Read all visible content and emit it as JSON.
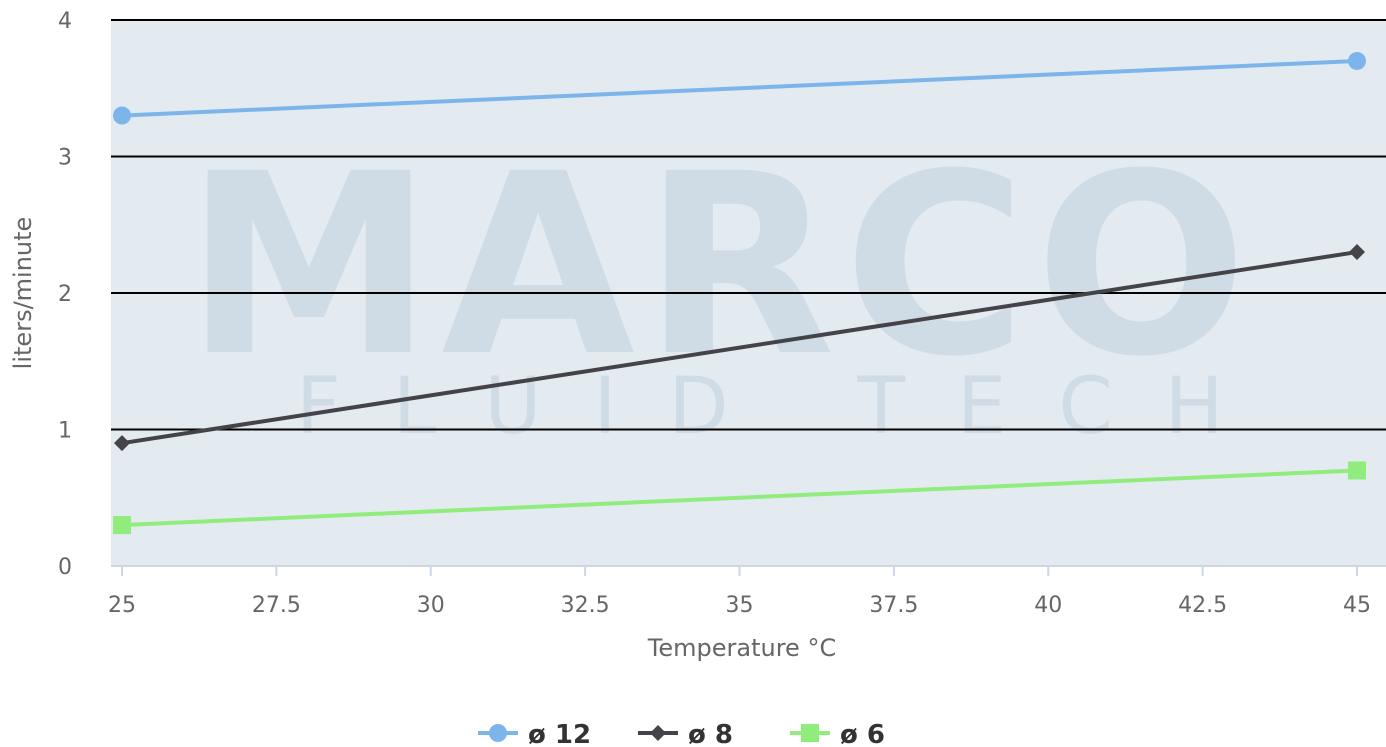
{
  "chart_data": {
    "type": "line",
    "xlabel": "Temperature °C",
    "ylabel": "liters/minute",
    "xlim": [
      25,
      45
    ],
    "ylim": [
      0,
      4
    ],
    "x_ticks": [
      "25",
      "27.5",
      "30",
      "32.5",
      "35",
      "37.5",
      "40",
      "42.5",
      "45"
    ],
    "y_ticks": [
      "0",
      "1",
      "2",
      "3",
      "4"
    ],
    "grid": true,
    "legend_position": "bottom",
    "plot_background": "#e3eaf0",
    "series": [
      {
        "name": "ø 12",
        "color": "#7cb5ec",
        "marker": "circle",
        "x": [
          25,
          45
        ],
        "y": [
          3.3,
          3.7
        ]
      },
      {
        "name": "ø 8",
        "color": "#434348",
        "marker": "diamond",
        "x": [
          25,
          45
        ],
        "y": [
          0.9,
          2.3
        ]
      },
      {
        "name": "ø 6",
        "color": "#90ed7d",
        "marker": "square",
        "x": [
          25,
          45
        ],
        "y": [
          0.3,
          0.7
        ]
      }
    ],
    "watermark": {
      "brand": "MARCO",
      "tagline": "FLUID TECH",
      "registered": "®"
    }
  }
}
